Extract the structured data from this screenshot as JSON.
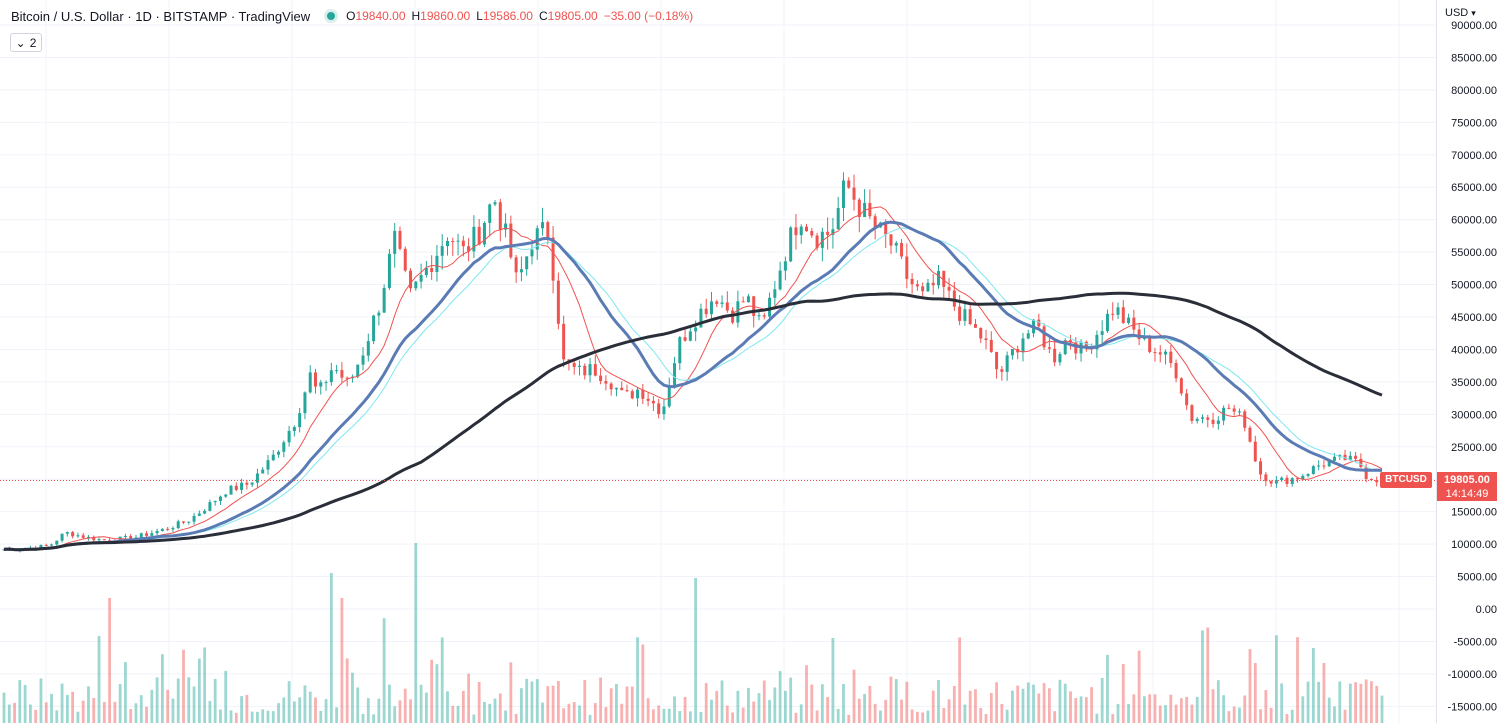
{
  "header": {
    "title": "Bitcoin / U.S. Dollar · 1D · BITSTAMP · TradingView",
    "status_dot_color": "#26a69a",
    "ohlc": [
      {
        "key": "O",
        "value": "19840.00"
      },
      {
        "key": "H",
        "value": "19860.00"
      },
      {
        "key": "L",
        "value": "19586.00"
      },
      {
        "key": "C",
        "value": "19805.00"
      },
      {
        "key": "",
        "value": "−35.00 (−0.18%)"
      }
    ],
    "collapse_count": "2"
  },
  "currency_selector": {
    "label": "USD"
  },
  "price_tag": {
    "symbol": "BTCUSD",
    "price": "19805.00",
    "countdown": "14:14:49"
  },
  "chart_data": {
    "type": "candlestick",
    "title": "Bitcoin / U.S. Dollar",
    "timeframe": "1D",
    "exchange": "BITSTAMP",
    "last_price": 19805,
    "y_axis": {
      "ylim": [
        -17500,
        92500
      ],
      "tick_labels": [
        "90000.00",
        "85000.00",
        "80000.00",
        "75000.00",
        "70000.00",
        "65000.00",
        "60000.00",
        "55000.00",
        "50000.00",
        "45000.00",
        "40000.00",
        "35000.00",
        "30000.00",
        "25000.00",
        "20000.00",
        "15000.00",
        "10000.00",
        "5000.00",
        "0.00",
        "-5000.00",
        "-10000.00",
        "-15000.00"
      ],
      "tick_values": [
        90000,
        85000,
        80000,
        75000,
        70000,
        65000,
        60000,
        55000,
        50000,
        45000,
        40000,
        35000,
        30000,
        25000,
        20000,
        15000,
        10000,
        5000,
        0,
        -5000,
        -10000,
        -15000
      ]
    },
    "colors": {
      "up": "#26a69a",
      "down": "#ef5350",
      "ma_fast": "#ef5350",
      "ma_mid_light": "#7fe7ee",
      "ma_mid": "#5b7bb5",
      "ma_slow": "#2a2e39"
    },
    "price_path": [
      [
        0,
        9200
      ],
      [
        3,
        9300
      ],
      [
        6,
        9800
      ],
      [
        8,
        11800
      ],
      [
        11,
        11000
      ],
      [
        13,
        10600
      ],
      [
        17,
        11000
      ],
      [
        21,
        12300
      ],
      [
        24,
        13600
      ],
      [
        26,
        15300
      ],
      [
        29,
        18200
      ],
      [
        32,
        19300
      ],
      [
        35,
        23200
      ],
      [
        38,
        29000
      ],
      [
        40,
        36000
      ],
      [
        41,
        33000
      ],
      [
        43,
        37500
      ],
      [
        45,
        34500
      ],
      [
        47,
        40000
      ],
      [
        49,
        47000
      ],
      [
        51,
        57000
      ],
      [
        53,
        48000
      ],
      [
        55,
        52000
      ],
      [
        58,
        58000
      ],
      [
        60,
        55000
      ],
      [
        62,
        58000
      ],
      [
        64,
        63500
      ],
      [
        66,
        55500
      ],
      [
        67,
        50000
      ],
      [
        69,
        57000
      ],
      [
        71,
        58500
      ],
      [
        72,
        50000
      ],
      [
        73,
        38000
      ],
      [
        75,
        36500
      ],
      [
        77,
        37000
      ],
      [
        79,
        35500
      ],
      [
        81,
        32500
      ],
      [
        83,
        34000
      ],
      [
        85,
        31500
      ],
      [
        86,
        30500
      ],
      [
        88,
        40500
      ],
      [
        90,
        44500
      ],
      [
        93,
        48500
      ],
      [
        95,
        45500
      ],
      [
        97,
        48000
      ],
      [
        99,
        43000
      ],
      [
        100,
        47500
      ],
      [
        102,
        55000
      ],
      [
        104,
        61000
      ],
      [
        106,
        57500
      ],
      [
        108,
        58000
      ],
      [
        110,
        65500
      ],
      [
        112,
        61500
      ],
      [
        114,
        58500
      ],
      [
        116,
        56000
      ],
      [
        118,
        51000
      ],
      [
        120,
        48000
      ],
      [
        122,
        50500
      ],
      [
        124,
        47000
      ],
      [
        126,
        44000
      ],
      [
        128,
        41500
      ],
      [
        130,
        36000
      ],
      [
        133,
        42000
      ],
      [
        135,
        43500
      ],
      [
        137,
        38500
      ],
      [
        139,
        42000
      ],
      [
        141,
        39500
      ],
      [
        143,
        43000
      ],
      [
        145,
        46500
      ],
      [
        147,
        43500
      ],
      [
        149,
        41000
      ],
      [
        151,
        39500
      ],
      [
        153,
        37000
      ],
      [
        155,
        29500
      ],
      [
        158,
        29500
      ],
      [
        160,
        31000
      ],
      [
        162,
        29000
      ],
      [
        164,
        21000
      ],
      [
        166,
        19500
      ],
      [
        169,
        20300
      ],
      [
        172,
        22300
      ],
      [
        175,
        23200
      ],
      [
        177,
        22500
      ],
      [
        178,
        20500
      ],
      [
        180,
        19805
      ]
    ],
    "moving_averages": [
      {
        "name": "MA short",
        "color": "#ef5350",
        "period": 9
      },
      {
        "name": "MA light",
        "color": "#7fe7ee",
        "period": 24
      },
      {
        "name": "MA mid",
        "color": "#5b7bb5",
        "period": 20
      },
      {
        "name": "MA long",
        "color": "#2a2e39",
        "period": 80
      }
    ],
    "volume": {
      "color_up": "#26a69a",
      "color_down": "#ef5350"
    }
  }
}
